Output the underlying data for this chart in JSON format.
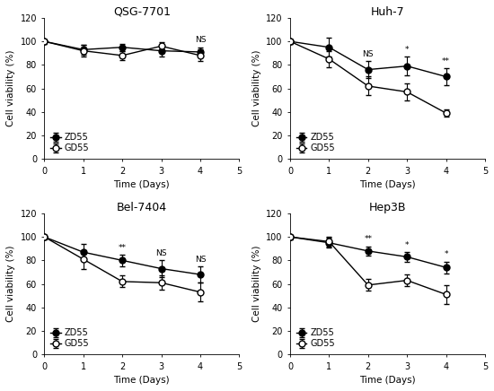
{
  "panels": [
    {
      "title": "QSG-7701",
      "ZD55_y": [
        100,
        93,
        95,
        92,
        91
      ],
      "ZD55_err": [
        2,
        4,
        3,
        5,
        4
      ],
      "GD55_y": [
        100,
        92,
        88,
        96,
        88
      ],
      "GD55_err": [
        2,
        5,
        4,
        3,
        5
      ],
      "annotations": [
        {
          "x": 4,
          "text": "NS"
        }
      ],
      "ann_above_ZD55": [
        true
      ],
      "ylim": [
        0,
        120
      ],
      "yticks": [
        0,
        20,
        40,
        60,
        80,
        100,
        120
      ],
      "legend_loc": "lower left",
      "legend_bbox": null
    },
    {
      "title": "Huh-7",
      "ZD55_y": [
        100,
        95,
        76,
        79,
        70
      ],
      "ZD55_err": [
        2,
        8,
        7,
        8,
        7
      ],
      "GD55_y": [
        100,
        85,
        62,
        57,
        39
      ],
      "GD55_err": [
        2,
        7,
        8,
        7,
        3
      ],
      "annotations": [
        {
          "x": 2,
          "text": "NS"
        },
        {
          "x": 3,
          "text": "*"
        },
        {
          "x": 4,
          "text": "**"
        }
      ],
      "ann_above_ZD55": [
        true,
        true,
        true
      ],
      "ylim": [
        0,
        120
      ],
      "yticks": [
        0,
        20,
        40,
        60,
        80,
        100,
        120
      ],
      "legend_loc": "lower left",
      "legend_bbox": null
    },
    {
      "title": "Bel-7404",
      "ZD55_y": [
        100,
        87,
        80,
        73,
        68
      ],
      "ZD55_err": [
        2,
        7,
        5,
        7,
        7
      ],
      "GD55_y": [
        100,
        81,
        62,
        61,
        53
      ],
      "GD55_err": [
        2,
        8,
        5,
        6,
        8
      ],
      "annotations": [
        {
          "x": 2,
          "text": "**"
        },
        {
          "x": 3,
          "text": "NS"
        },
        {
          "x": 4,
          "text": "NS"
        }
      ],
      "ann_above_ZD55": [
        true,
        true,
        true
      ],
      "ylim": [
        0,
        120
      ],
      "yticks": [
        0,
        20,
        40,
        60,
        80,
        100,
        120
      ],
      "legend_loc": "lower left",
      "legend_bbox": null
    },
    {
      "title": "Hep3B",
      "ZD55_y": [
        100,
        95,
        88,
        83,
        74
      ],
      "ZD55_err": [
        2,
        4,
        4,
        4,
        5
      ],
      "GD55_y": [
        100,
        96,
        59,
        63,
        51
      ],
      "GD55_err": [
        2,
        4,
        5,
        5,
        8
      ],
      "annotations": [
        {
          "x": 2,
          "text": "**"
        },
        {
          "x": 3,
          "text": "*"
        },
        {
          "x": 4,
          "text": "*"
        }
      ],
      "ann_above_ZD55": [
        true,
        true,
        true
      ],
      "ylim": [
        0,
        120
      ],
      "yticks": [
        0,
        20,
        40,
        60,
        80,
        100,
        120
      ],
      "legend_loc": "lower left",
      "legend_bbox": null
    }
  ],
  "x": [
    0,
    1,
    2,
    3,
    4
  ],
  "xlabel": "Time (Days)",
  "ylabel": "Cell viability (%)",
  "legend_ZD55": "ZD55",
  "legend_GD55": "GD55",
  "line_color": "#000000",
  "marker_ZD55": "o",
  "marker_GD55": "o",
  "markersize": 5,
  "linewidth": 1.0,
  "capsize": 2.5,
  "elinewidth": 0.8,
  "font_size_title": 9,
  "font_size_axis": 7.5,
  "font_size_tick": 7,
  "font_size_legend": 7,
  "font_size_annot": 6.5
}
